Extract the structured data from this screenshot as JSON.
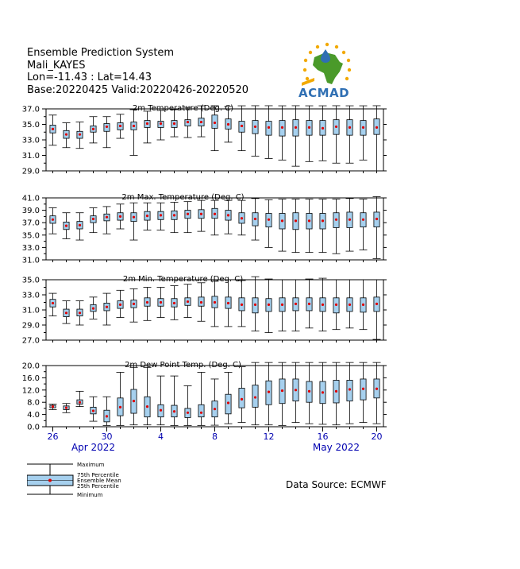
{
  "header": {
    "line1": "Ensemble Prediction System",
    "line2": "Mali_KAYES",
    "line3": "Lon=-11.43 : Lat=14.43",
    "line4": "Base:20220425 Valid:20220426-20220520"
  },
  "logo": {
    "text": "ACMAD"
  },
  "source": "Data Source: ECMWF",
  "legend": {
    "maximum": "Maximum",
    "p75": "75th Percentile",
    "mean": "Ensemble Mean",
    "p25": "25th Percentile",
    "minimum": "Minimum"
  },
  "colors": {
    "box_fill": "#a6d0ee",
    "mean": "#e00000",
    "axis_label": "#0000b0"
  },
  "x_axis": {
    "ticks": [
      {
        "day": 1,
        "label": "26"
      },
      {
        "day": 5,
        "label": "30"
      },
      {
        "day": 9,
        "label": "4"
      },
      {
        "day": 13,
        "label": "8"
      },
      {
        "day": 17,
        "label": "12"
      },
      {
        "day": 21,
        "label": "16"
      },
      {
        "day": 25,
        "label": "20"
      }
    ],
    "months": [
      {
        "day": 4,
        "label": "Apr 2022"
      },
      {
        "day": 22,
        "label": "May 2022"
      }
    ]
  },
  "chart_data": [
    {
      "type": "box",
      "title": "2m Temperature (Deg. C)",
      "ylim": [
        29.0,
        37.0
      ],
      "yticks": [
        "29.0",
        "31.0",
        "33.0",
        "35.0",
        "37.0"
      ],
      "dates": [
        "2022-04-26",
        "2022-04-27",
        "2022-04-28",
        "2022-04-29",
        "2022-04-30",
        "2022-05-01",
        "2022-05-02",
        "2022-05-03",
        "2022-05-04",
        "2022-05-05",
        "2022-05-06",
        "2022-05-07",
        "2022-05-08",
        "2022-05-09",
        "2022-05-10",
        "2022-05-11",
        "2022-05-12",
        "2022-05-13",
        "2022-05-14",
        "2022-05-15",
        "2022-05-16",
        "2022-05-17",
        "2022-05-18",
        "2022-05-19",
        "2022-05-20"
      ],
      "min": [
        32.3,
        32.0,
        31.9,
        32.6,
        32.0,
        33.2,
        31.0,
        32.6,
        33.0,
        33.4,
        33.3,
        33.4,
        31.6,
        32.7,
        31.6,
        30.9,
        30.6,
        30.4,
        29.6,
        30.2,
        30.3,
        30.0,
        30.0,
        30.4,
        29.0
      ],
      "p25": [
        33.9,
        33.2,
        33.2,
        34.0,
        34.1,
        34.3,
        34.3,
        34.6,
        34.6,
        34.6,
        34.8,
        34.8,
        34.5,
        34.4,
        34.0,
        33.8,
        33.6,
        33.5,
        33.5,
        33.6,
        33.6,
        33.7,
        33.6,
        33.6,
        33.7
      ],
      "mean": [
        34.4,
        33.7,
        33.7,
        34.4,
        34.7,
        34.8,
        34.8,
        35.1,
        35.1,
        35.1,
        35.3,
        35.3,
        35.2,
        35.0,
        34.8,
        34.7,
        34.6,
        34.6,
        34.6,
        34.6,
        34.5,
        34.7,
        34.6,
        34.6,
        34.6
      ],
      "p75": [
        34.9,
        34.2,
        34.1,
        34.8,
        35.1,
        35.2,
        35.3,
        35.5,
        35.4,
        35.5,
        35.6,
        35.8,
        36.2,
        35.7,
        35.4,
        35.5,
        35.4,
        35.5,
        35.6,
        35.5,
        35.5,
        35.6,
        35.6,
        35.5,
        35.7
      ],
      "max": [
        36.2,
        35.2,
        35.3,
        36.0,
        36.0,
        36.3,
        36.9,
        36.7,
        36.8,
        36.9,
        37.2,
        37.4,
        37.5,
        37.3,
        37.4,
        37.7,
        37.6,
        37.4,
        37.5,
        37.4,
        37.4,
        37.5,
        37.4,
        37.4,
        37.8
      ]
    },
    {
      "type": "box",
      "title": "2m Max. Temperature (Deg. C)",
      "ylim": [
        31.0,
        41.0
      ],
      "yticks": [
        "31.0",
        "33.0",
        "35.0",
        "37.0",
        "39.0",
        "41.0"
      ],
      "dates": [
        "2022-04-26",
        "2022-04-27",
        "2022-04-28",
        "2022-04-29",
        "2022-04-30",
        "2022-05-01",
        "2022-05-02",
        "2022-05-03",
        "2022-05-04",
        "2022-05-05",
        "2022-05-06",
        "2022-05-07",
        "2022-05-08",
        "2022-05-09",
        "2022-05-10",
        "2022-05-11",
        "2022-05-12",
        "2022-05-13",
        "2022-05-14",
        "2022-05-15",
        "2022-05-16",
        "2022-05-17",
        "2022-05-18",
        "2022-05-19",
        "2022-05-20"
      ],
      "min": [
        35.2,
        34.4,
        34.2,
        35.4,
        35.2,
        36.0,
        34.2,
        35.8,
        35.8,
        35.4,
        35.4,
        35.6,
        35.0,
        35.2,
        35.0,
        34.2,
        33.0,
        32.4,
        32.2,
        32.2,
        32.2,
        32.0,
        32.4,
        32.6,
        31.2
      ],
      "p25": [
        36.9,
        35.9,
        36.0,
        37.0,
        37.3,
        37.4,
        37.2,
        37.4,
        37.5,
        37.5,
        37.7,
        37.7,
        37.7,
        37.4,
        36.9,
        36.5,
        36.3,
        36.0,
        35.9,
        36.0,
        36.0,
        36.2,
        36.2,
        36.3,
        36.3
      ],
      "mean": [
        37.5,
        36.5,
        36.6,
        37.6,
        37.9,
        38.0,
        37.9,
        38.1,
        38.2,
        38.2,
        38.4,
        38.4,
        38.4,
        38.2,
        37.7,
        37.6,
        37.5,
        37.3,
        37.3,
        37.3,
        37.3,
        37.5,
        37.5,
        37.5,
        37.6
      ],
      "p75": [
        38.1,
        37.1,
        37.2,
        38.1,
        38.4,
        38.6,
        38.6,
        38.8,
        38.8,
        38.9,
        39.0,
        39.1,
        39.3,
        39.0,
        38.6,
        38.6,
        38.5,
        38.5,
        38.6,
        38.5,
        38.5,
        38.6,
        38.7,
        38.6,
        38.7
      ],
      "max": [
        39.4,
        38.6,
        38.6,
        39.4,
        39.6,
        40.0,
        40.2,
        40.2,
        40.2,
        40.3,
        40.4,
        40.6,
        40.6,
        40.6,
        40.6,
        40.9,
        40.7,
        40.8,
        40.8,
        40.8,
        40.8,
        40.8,
        40.9,
        40.8,
        41.2
      ]
    },
    {
      "type": "box",
      "title": "2m Min. Temperature (Deg. C)",
      "ylim": [
        27.0,
        35.0
      ],
      "yticks": [
        "27.0",
        "29.0",
        "31.0",
        "33.0",
        "35.0"
      ],
      "dates": [
        "2022-04-26",
        "2022-04-27",
        "2022-04-28",
        "2022-04-29",
        "2022-04-30",
        "2022-05-01",
        "2022-05-02",
        "2022-05-03",
        "2022-05-04",
        "2022-05-05",
        "2022-05-06",
        "2022-05-07",
        "2022-05-08",
        "2022-05-09",
        "2022-05-10",
        "2022-05-11",
        "2022-05-12",
        "2022-05-13",
        "2022-05-14",
        "2022-05-15",
        "2022-05-16",
        "2022-05-17",
        "2022-05-18",
        "2022-05-19",
        "2022-05-20"
      ],
      "min": [
        30.2,
        29.2,
        29.0,
        29.8,
        29.0,
        30.0,
        29.4,
        29.6,
        30.0,
        29.7,
        30.0,
        29.5,
        28.8,
        28.8,
        28.8,
        28.2,
        28.0,
        28.2,
        28.2,
        28.6,
        28.2,
        28.4,
        28.6,
        28.4,
        27.1
      ],
      "p25": [
        31.4,
        30.1,
        30.2,
        30.8,
        30.9,
        31.2,
        31.3,
        31.5,
        31.5,
        31.4,
        31.6,
        31.5,
        31.3,
        31.2,
        30.9,
        30.6,
        30.8,
        30.8,
        30.9,
        30.9,
        30.8,
        30.6,
        30.8,
        30.7,
        30.8
      ],
      "mean": [
        31.9,
        30.6,
        30.6,
        31.2,
        31.4,
        31.7,
        31.8,
        32.0,
        32.0,
        31.9,
        32.1,
        32.0,
        32.0,
        31.9,
        31.7,
        31.7,
        31.7,
        31.7,
        31.8,
        31.8,
        31.7,
        31.7,
        31.7,
        31.7,
        31.8
      ],
      "p75": [
        32.4,
        31.1,
        31.1,
        31.7,
        31.9,
        32.2,
        32.3,
        32.6,
        32.5,
        32.5,
        32.6,
        32.7,
        32.8,
        32.7,
        32.6,
        32.6,
        32.5,
        32.6,
        32.6,
        32.6,
        32.6,
        32.6,
        32.6,
        32.6,
        32.7
      ],
      "max": [
        33.2,
        32.2,
        32.2,
        32.7,
        33.2,
        33.6,
        33.8,
        34.0,
        34.0,
        34.2,
        34.4,
        34.6,
        34.8,
        35.0,
        34.9,
        35.4,
        35.1,
        35.0,
        35.0,
        35.1,
        35.2,
        35.0,
        35.0,
        35.0,
        35.0
      ]
    },
    {
      "type": "box",
      "title": "2m Dew Point Temp. (Deg. C)",
      "ylim": [
        0.0,
        20.0
      ],
      "yticks": [
        "0.0",
        "4.0",
        "8.0",
        "12.0",
        "16.0",
        "20.0"
      ],
      "dates": [
        "2022-04-26",
        "2022-04-27",
        "2022-04-28",
        "2022-04-29",
        "2022-04-30",
        "2022-05-01",
        "2022-05-02",
        "2022-05-03",
        "2022-05-04",
        "2022-05-05",
        "2022-05-06",
        "2022-05-07",
        "2022-05-08",
        "2022-05-09",
        "2022-05-10",
        "2022-05-11",
        "2022-05-12",
        "2022-05-13",
        "2022-05-14",
        "2022-05-15",
        "2022-05-16",
        "2022-05-17",
        "2022-05-18",
        "2022-05-19",
        "2022-05-20"
      ],
      "min": [
        5.6,
        4.6,
        6.6,
        1.8,
        0.4,
        0.4,
        0.6,
        0.6,
        0.6,
        0.4,
        0.4,
        0.4,
        0.5,
        1.0,
        1.4,
        0.6,
        0.6,
        0.4,
        1.4,
        1.0,
        0.8,
        0.6,
        1.0,
        1.4,
        1.0
      ],
      "p25": [
        6.2,
        5.6,
        7.4,
        4.2,
        1.6,
        3.6,
        4.4,
        3.2,
        3.2,
        3.2,
        3.0,
        3.2,
        3.2,
        4.2,
        6.2,
        6.4,
        7.2,
        7.6,
        8.4,
        8.0,
        7.6,
        7.8,
        8.4,
        8.8,
        9.4
      ],
      "mean": [
        6.6,
        6.2,
        8.0,
        5.2,
        3.4,
        6.4,
        8.4,
        6.6,
        5.4,
        5.0,
        4.6,
        4.6,
        5.8,
        7.8,
        9.0,
        9.6,
        11.4,
        11.8,
        12.0,
        11.6,
        11.2,
        11.6,
        12.2,
        12.4,
        12.4
      ],
      "p75": [
        7.0,
        6.8,
        8.8,
        6.4,
        5.4,
        9.4,
        12.2,
        9.8,
        7.2,
        7.0,
        6.0,
        7.2,
        8.4,
        10.6,
        12.6,
        13.6,
        15.0,
        15.6,
        15.6,
        14.8,
        14.8,
        15.2,
        15.2,
        15.6,
        15.6
      ],
      "max": [
        7.4,
        7.6,
        11.6,
        9.8,
        9.8,
        17.8,
        19.4,
        19.4,
        16.6,
        16.6,
        13.4,
        17.8,
        15.6,
        17.8,
        19.6,
        21.0,
        21.0,
        21.0,
        21.0,
        21.0,
        21.0,
        21.0,
        21.0,
        21.0,
        21.0
      ]
    }
  ]
}
